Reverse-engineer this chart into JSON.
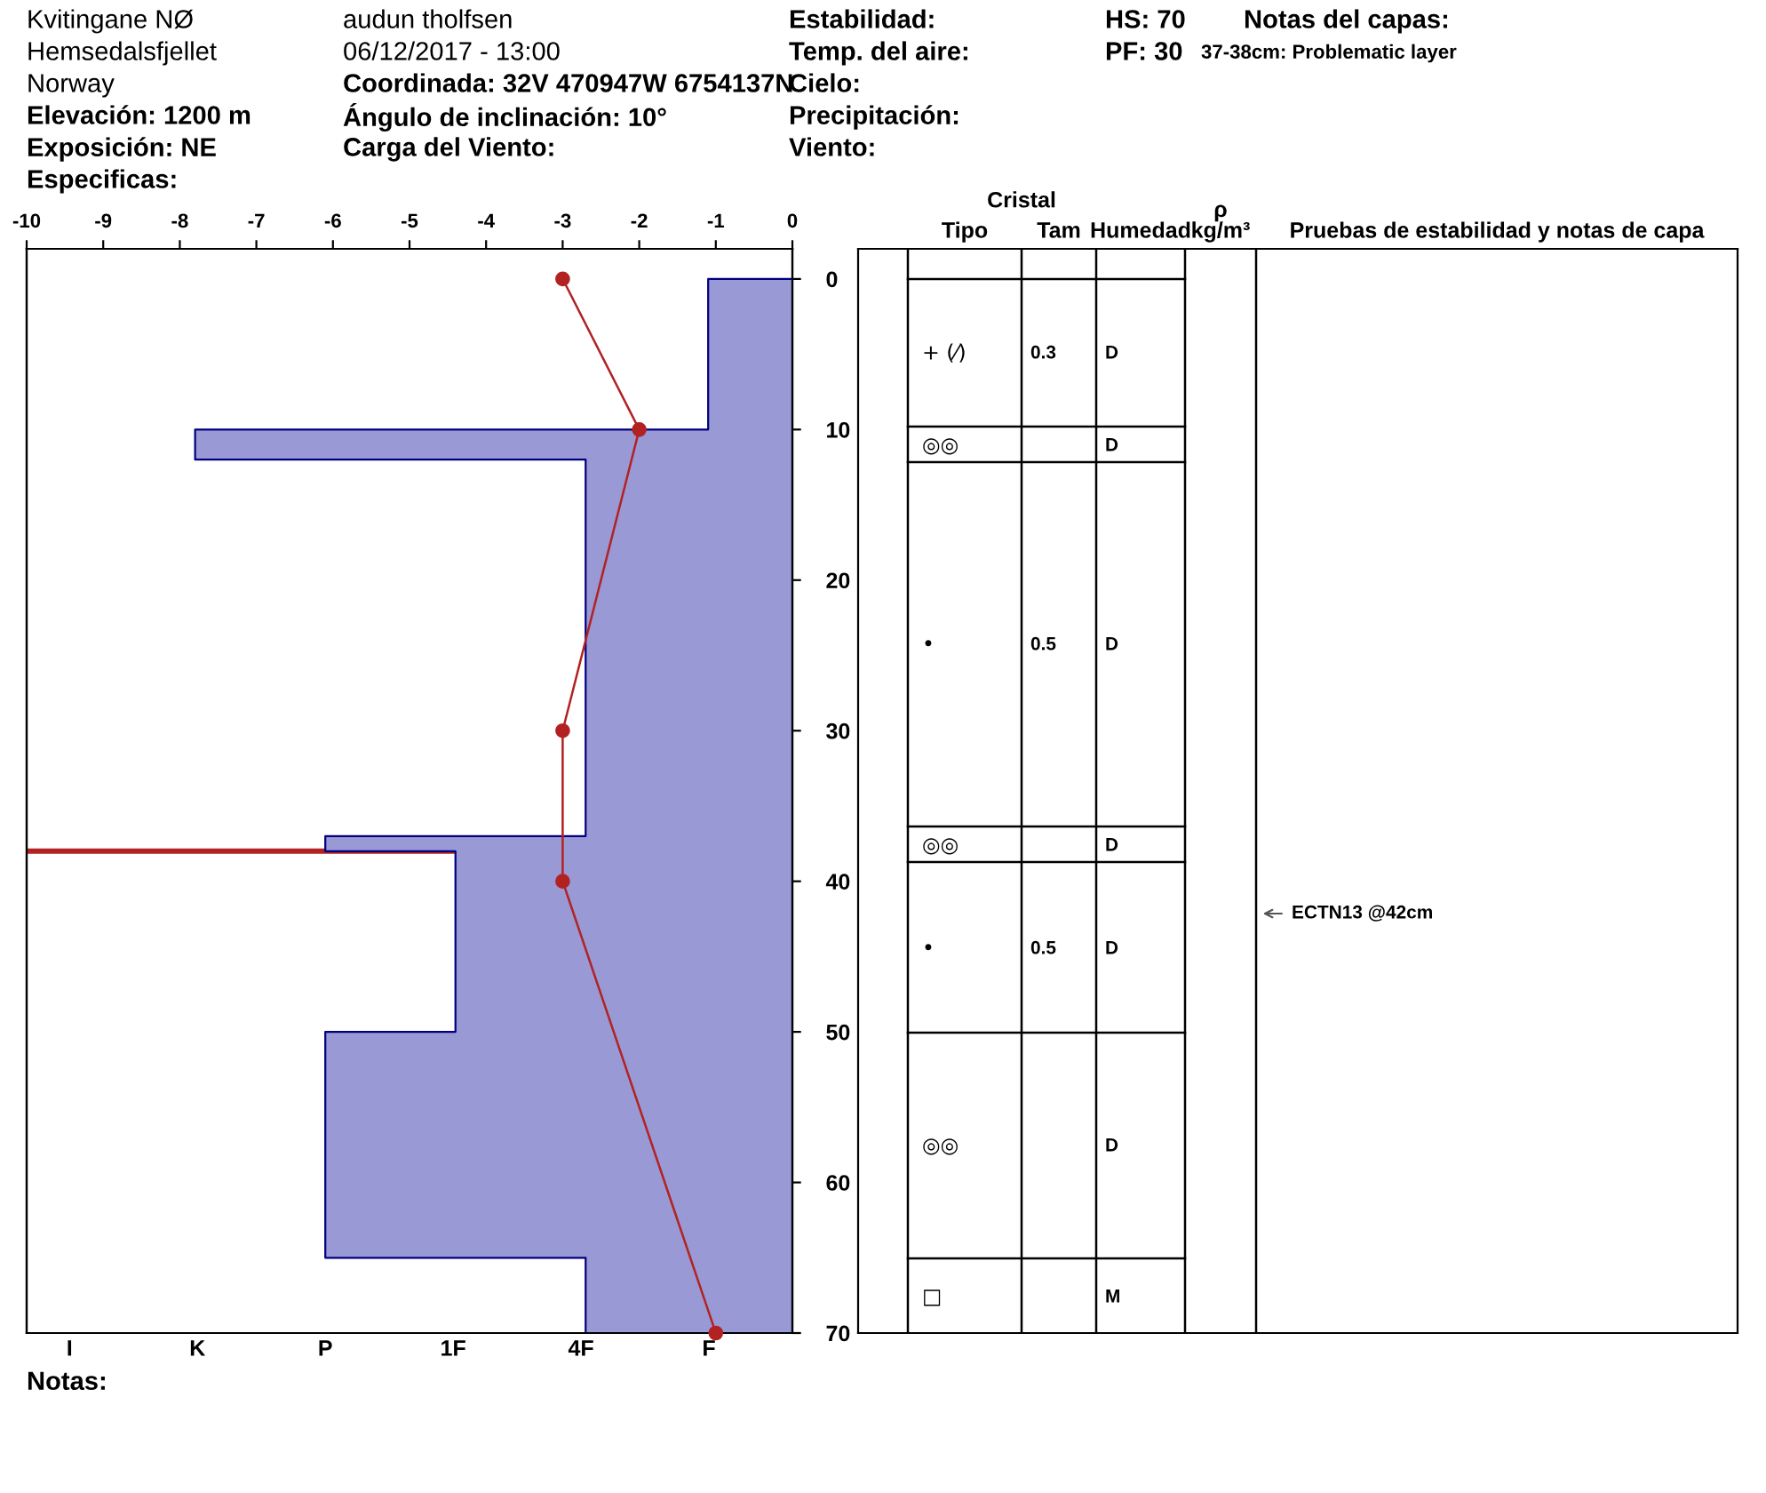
{
  "chart_data": [
    {
      "type": "other",
      "annotations": [
        "Kvitingane NØ",
        "Hemsedalsfjellet",
        "Norway",
        "Elevación: 1200 m",
        "Exposición: NE",
        "Especificas:",
        "audun tholfsen",
        "06/12/2017 - 13:00",
        "Coordinada: 32V 470947W 6754137N",
        "Ángulo de inclinación: 10°",
        "Carga del Viento:",
        "Estabilidad:",
        "Temp. del aire:",
        "Cielo:",
        "Precipitación:",
        "Viento:",
        "HS: 70",
        "PF: 30",
        "Notas del capas:",
        "37-38cm: Problematic layer"
      ]
    },
    {
      "type": "area",
      "orientation": "horizontal",
      "series": [
        {
          "type": "area",
          "axis": "x2",
          "x": [
            0,
            10,
            10,
            12,
            12,
            37,
            37,
            38,
            38,
            50,
            50,
            65,
            65,
            70
          ],
          "values": [
            -1.1,
            -1.1,
            -7.8,
            -7.8,
            -2.7,
            -2.7,
            -6.1,
            -6.1,
            -4.4,
            -4.4,
            -6.1,
            -6.1,
            -2.7,
            -2.7
          ],
          "color": "#9999d6"
        },
        {
          "type": "line",
          "axis": "x2",
          "x": [
            0,
            10,
            30,
            40,
            70
          ],
          "values": [
            -3,
            -2,
            -3,
            -3,
            -1
          ],
          "color": "#b22222",
          "marker": "circle",
          "line_style": "solid"
        }
      ],
      "x2lim": [
        -10,
        0
      ],
      "x2ticks": [
        -10,
        -9,
        -8,
        -7,
        -6,
        -5,
        -4,
        -3,
        -2,
        -1,
        0
      ],
      "ylim": [
        70,
        -2
      ],
      "yticks": [
        0,
        10,
        20,
        30,
        40,
        50,
        60,
        70
      ],
      "ref_lines": [
        {
          "axis": "y",
          "value": 38,
          "color": "#b22222"
        }
      ],
      "annotations": [
        "I",
        "K",
        "P",
        "1F",
        "4F",
        "F",
        "Notas:"
      ]
    },
    {
      "type": "other",
      "categories": [
        null,
        "Tipo",
        "Tam",
        "Humedad",
        "ρ\nkg/m³",
        "Pruebas de estabilidad y notas de capa"
      ],
      "annotations": [
        "Cristal",
        "+ (⁄)",
        "0.3",
        "D",
        "◎◎",
        "D",
        "•",
        "0.5",
        "D",
        "◎◎",
        "D",
        "•",
        "0.5",
        "D",
        "◎◎",
        "D",
        "□",
        "M",
        "ECTN13 @42cm"
      ]
    }
  ]
}
